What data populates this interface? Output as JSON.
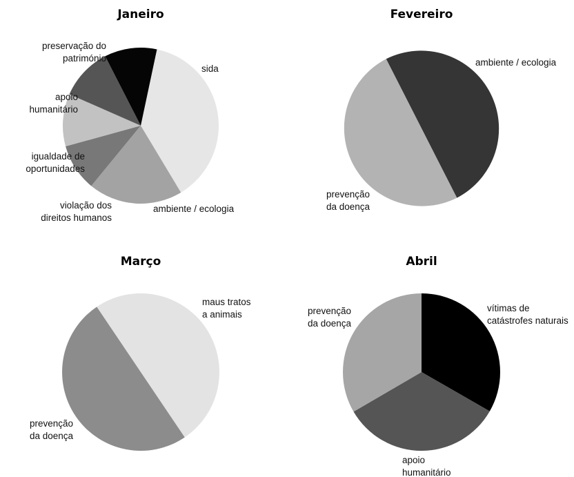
{
  "chart_data": [
    {
      "type": "pie",
      "title": "Janeiro",
      "slices": [
        {
          "label": [
            "sida"
          ],
          "value": 35,
          "color": "#e6e6e6"
        },
        {
          "label": [
            "ambiente / ecologia"
          ],
          "value": 18,
          "color": "#a3a3a3"
        },
        {
          "label": [
            "violação dos",
            "direitos humanos"
          ],
          "value": 9,
          "color": "#787878"
        },
        {
          "label": [
            "igualdade de",
            "oportunidades"
          ],
          "value": 10,
          "color": "#c2c2c2"
        },
        {
          "label": [
            "apoio",
            "humanitário"
          ],
          "value": 10,
          "color": "#555555"
        },
        {
          "label": [
            "preservação do",
            "património"
          ],
          "value": 10,
          "color": "#050505"
        }
      ]
    },
    {
      "type": "pie",
      "title": "Fevereiro",
      "slices": [
        {
          "label": [
            "ambiente / ecologia"
          ],
          "value": 50,
          "color": "#353535"
        },
        {
          "label": [
            "prevenção",
            "da doença"
          ],
          "value": 50,
          "color": "#b3b3b3"
        }
      ]
    },
    {
      "type": "pie",
      "title": "Março",
      "slices": [
        {
          "label": [
            "maus tratos",
            "a animais"
          ],
          "value": 50,
          "color": "#e3e3e3"
        },
        {
          "label": [
            "prevenção",
            "da doença"
          ],
          "value": 50,
          "color": "#8c8c8c"
        }
      ]
    },
    {
      "type": "pie",
      "title": "Abril",
      "slices": [
        {
          "label": [
            "vítimas de",
            "catástrofes naturais"
          ],
          "value": 33.3,
          "color": "#000000"
        },
        {
          "label": [
            "apoio",
            "humanitário"
          ],
          "value": 33.3,
          "color": "#555555"
        },
        {
          "label": [
            "prevenção",
            "da doença"
          ],
          "value": 33.4,
          "color": "#a6a6a6"
        }
      ]
    }
  ]
}
